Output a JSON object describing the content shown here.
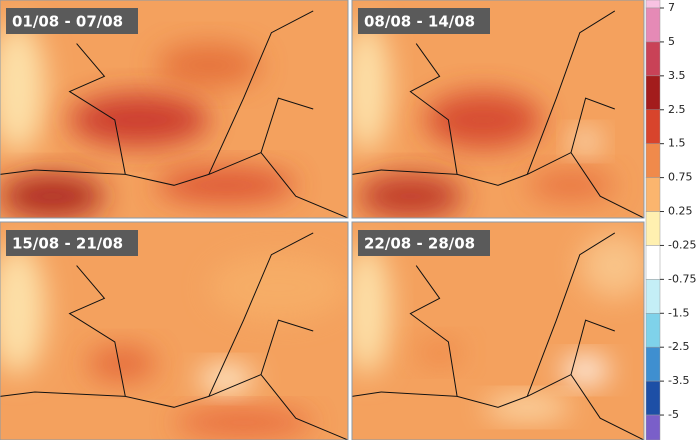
{
  "panels": [
    {
      "label": "01/08 - 07/08"
    },
    {
      "label": "08/08 - 14/08"
    },
    {
      "label": "15/08 - 21/08"
    },
    {
      "label": "22/08 - 28/08"
    }
  ],
  "legend": {
    "ticks": [
      "7",
      "5",
      "3.5",
      "2.5",
      "1.5",
      "0.75",
      "0.25",
      "-0.25",
      "-0.75",
      "-1.5",
      "-2.5",
      "-3.5",
      "-5"
    ],
    "colors": [
      "#f8c2e2",
      "#e58ab6",
      "#c94257",
      "#a31c1c",
      "#d8442c",
      "#f08a4b",
      "#fbb56e",
      "#fff0b0",
      "#ffffff",
      "#c4eef6",
      "#7fd2ea",
      "#3f8fd0",
      "#1d4fa6",
      "#7a5fc9"
    ]
  }
}
